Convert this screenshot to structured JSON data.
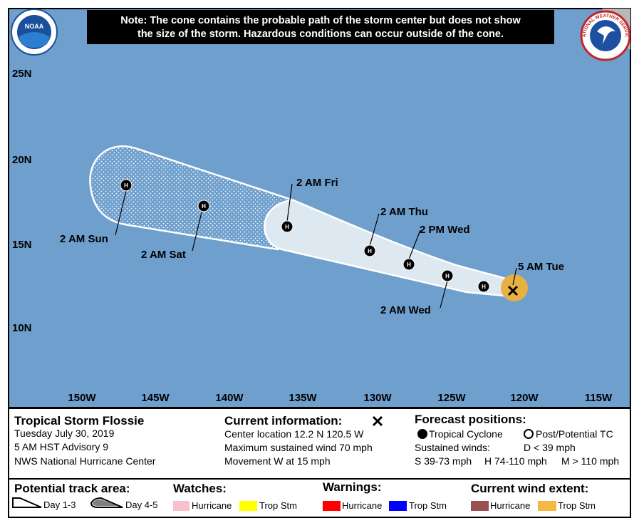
{
  "note": [
    "Note: The cone contains the probable path of the storm center but does not show",
    "the size of the storm. Hazardous conditions can occur outside of the cone."
  ],
  "logos": {
    "left": "NOAA",
    "right": "NATIONAL WEATHER SERVICE"
  },
  "map": {
    "lat_labels": [
      "25N",
      "20N",
      "15N",
      "10N"
    ],
    "lon_labels": [
      "150W",
      "145W",
      "140W",
      "135W",
      "130W",
      "125W",
      "120W",
      "115W"
    ],
    "marker_letter": "H",
    "forecast_labels": [
      "5 AM Tue",
      "2 AM Wed",
      "2 PM Wed",
      "2 AM Thu",
      "2 AM Fri",
      "2 AM Sat",
      "2 AM Sun"
    ]
  },
  "info": {
    "storm": {
      "title": "Tropical Storm Flossie",
      "date": "Tuesday July 30, 2019",
      "advisory": "5 AM HST Advisory 9",
      "center": "NWS National Hurricane Center"
    },
    "current": {
      "title": "Current information:",
      "location": "Center location 12.2 N 120.5 W",
      "wind": "Maximum sustained wind 70 mph",
      "movement": "Movement W at 15 mph"
    },
    "forecast": {
      "title": "Forecast positions:",
      "tropical": "Tropical Cyclone",
      "post": "Post/Potential TC",
      "sustained": "Sustained winds:",
      "d": "D < 39 mph",
      "s": "S 39-73 mph",
      "h": "H 74-110 mph",
      "m": "M > 110 mph"
    }
  },
  "legend": {
    "track": {
      "title": "Potential track area:",
      "day13": "Day 1-3",
      "day45": "Day 4-5"
    },
    "watches": {
      "title": "Watches:",
      "hurricane": "Hurricane",
      "trop": "Trop Stm"
    },
    "warnings": {
      "title": "Warnings:",
      "hurricane": "Hurricane",
      "trop": "Trop Stm"
    },
    "wind": {
      "title": "Current wind extent:",
      "hurricane": "Hurricane",
      "trop": "Trop Stm"
    }
  }
}
